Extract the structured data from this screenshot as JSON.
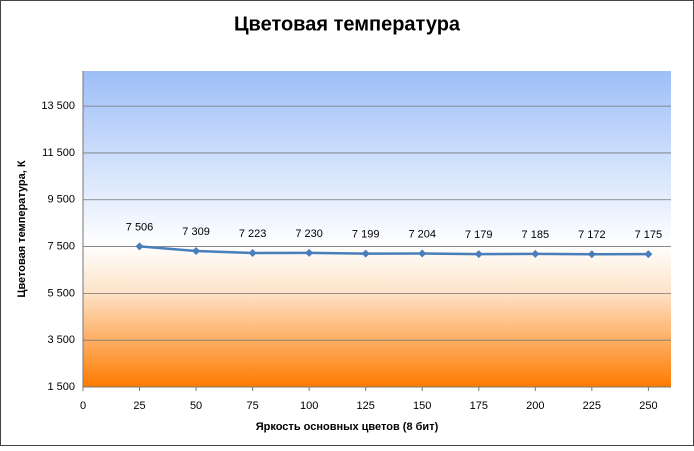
{
  "chart_data": {
    "type": "line",
    "title": "Цветовая температура",
    "x_label": "Яркость  основных  цветов (8 бит)",
    "y_label": "Цветовая температура,  К",
    "x": [
      25,
      50,
      75,
      100,
      125,
      150,
      175,
      200,
      225,
      250
    ],
    "series": [
      {
        "name": "Цветовая температура",
        "color": "#4a7ebb",
        "values": [
          7506,
          7309,
          7223,
          7230,
          7199,
          7204,
          7179,
          7185,
          7172,
          7175
        ],
        "value_labels": [
          "7 506",
          "7 309",
          "7 223",
          "7 230",
          "7 199",
          "7 204",
          "7 179",
          "7 185",
          "7 172",
          "7 175"
        ]
      }
    ],
    "xlim": [
      0,
      260
    ],
    "xticks": [
      0,
      25,
      50,
      75,
      100,
      125,
      150,
      175,
      200,
      225,
      250
    ],
    "ylim": [
      1500,
      15000
    ],
    "yticks": [
      {
        "value": 1500,
        "label": "1 500"
      },
      {
        "value": 3500,
        "label": "3 500"
      },
      {
        "value": 5500,
        "label": "5 500"
      },
      {
        "value": 7500,
        "label": "7 500"
      },
      {
        "value": 9500,
        "label": "9 500"
      },
      {
        "value": 11500,
        "label": "11 500"
      },
      {
        "value": 13500,
        "label": "13 500"
      }
    ],
    "grid": true
  }
}
